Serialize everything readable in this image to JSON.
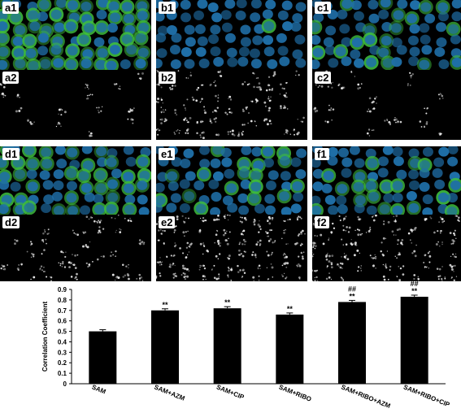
{
  "panels": {
    "a1": "a1",
    "a2": "a2",
    "b1": "b1",
    "b2": "b2",
    "c1": "c1",
    "c2": "c2",
    "d1": "d1",
    "d2": "d2",
    "e1": "e1",
    "e2": "e2",
    "f1": "f1",
    "f2": "f2"
  },
  "colors": {
    "nucleus": "#1f6fa8",
    "green_signal": "#3fbf3f",
    "spot": "#e8e8e8",
    "bar": "#000000"
  },
  "chart_data": {
    "type": "bar",
    "title": "",
    "xlabel": "",
    "ylabel": "Correlation Coefficient",
    "ylim": [
      0,
      0.9
    ],
    "yticks": [
      "0",
      "0.1",
      "0.2",
      "0.3",
      "0.4",
      "0.5",
      "0.6",
      "0.7",
      "0.8",
      "0.9"
    ],
    "grid": false,
    "categories": [
      "SAM",
      "SAM+AZM",
      "SAM+CIP",
      "SAM+RIBO",
      "SAM+RIBO+AZM",
      "SAM+RIBO+CIP"
    ],
    "values": [
      0.5,
      0.7,
      0.72,
      0.66,
      0.78,
      0.83
    ],
    "annotations": [
      "",
      "**",
      "**",
      "**",
      "##\n**",
      "##\n**"
    ]
  }
}
